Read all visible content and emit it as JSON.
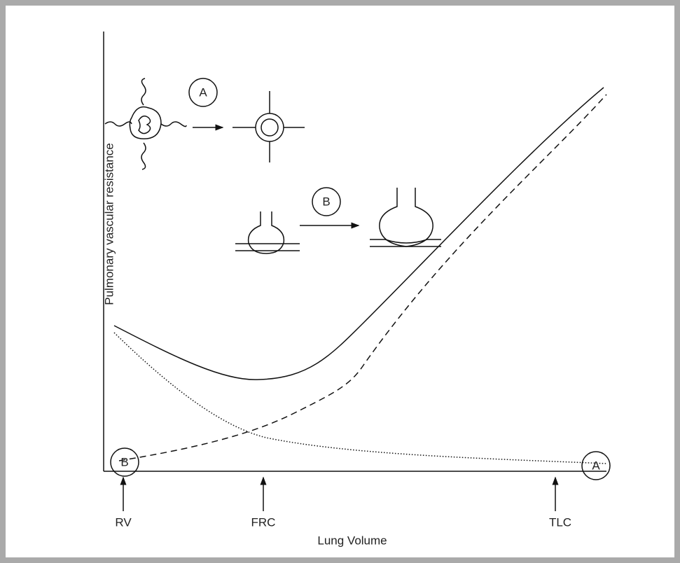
{
  "y_axis_label": "Pulmonary vascular resistance",
  "x_axis_label": "Lung Volume",
  "volume_markers": [
    "RV",
    "FRC",
    "TLC"
  ],
  "circle_labels": [
    "A",
    "B",
    "B",
    "A"
  ]
}
